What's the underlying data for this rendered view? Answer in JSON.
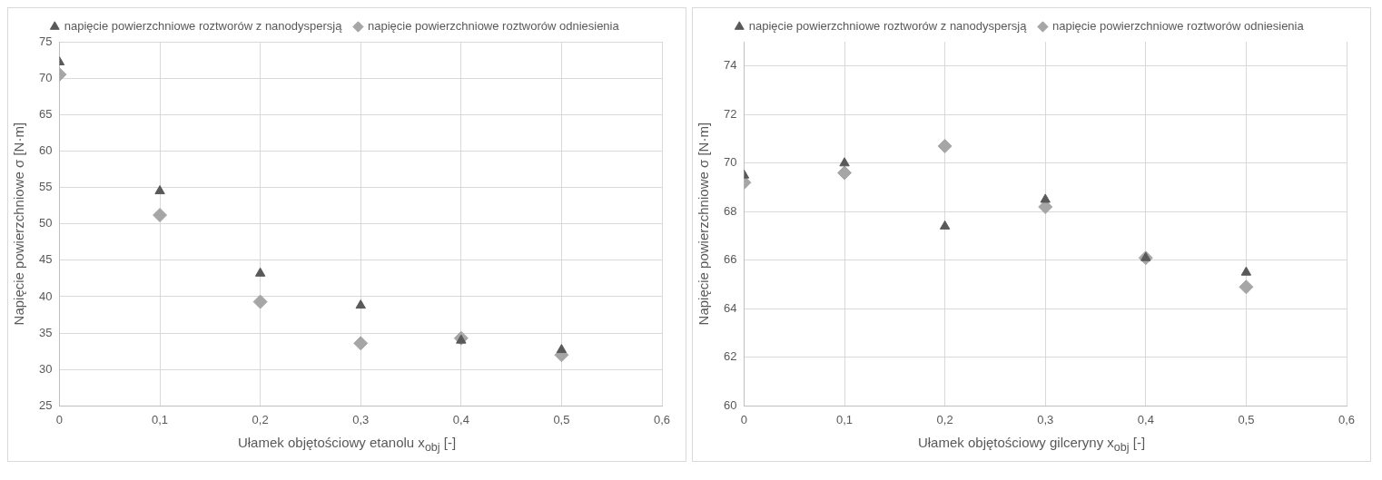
{
  "chart_data": [
    {
      "type": "scatter",
      "xlabel": "Ułamek objętościowy etanolu x$_{obj}$ [-]",
      "ylabel": "Napięcie powierzchniowe σ [N·m]",
      "x": [
        0,
        0.1,
        0.2,
        0.3,
        0.4,
        0.5
      ],
      "series": [
        {
          "name": "napięcie powierzchniowe roztworów z nanodyspersją",
          "color": "#595959",
          "marker": "triangle",
          "values": [
            72.2,
            54.5,
            43.2,
            38.8,
            34.0,
            32.7
          ]
        },
        {
          "name": "napięcie powierzchniowe roztworów odniesienia",
          "color": "#a6a6a6",
          "marker": "diamond",
          "values": [
            70.5,
            51.2,
            39.3,
            33.6,
            34.3,
            32.0
          ]
        }
      ],
      "xlim": [
        0,
        0.6
      ],
      "xticks": [
        0,
        {
          "value": 0.1,
          "label": "0,1"
        },
        {
          "value": 0.2,
          "label": "0,2"
        },
        {
          "value": 0.3,
          "label": "0,3"
        },
        {
          "value": 0.4,
          "label": "0,4"
        },
        {
          "value": 0.5,
          "label": "0,5"
        },
        {
          "value": 0.6,
          "label": "0,6"
        }
      ],
      "ylim": [
        25,
        75
      ],
      "yticks": [
        25,
        30,
        35,
        40,
        45,
        50,
        55,
        60,
        65,
        70,
        75
      ],
      "grid": true,
      "legend": "top"
    },
    {
      "type": "scatter",
      "xlabel": "Ułamek objętościowy gilceryny x$_{obj}$ [-]",
      "ylabel": "Napięcie powierzchniowe σ [N·m]",
      "x": [
        0,
        0.1,
        0.2,
        0.3,
        0.4,
        0.5
      ],
      "series": [
        {
          "name": "napięcie powierzchniowe roztworów z nanodyspersją",
          "color": "#595959",
          "marker": "triangle",
          "values": [
            69.5,
            70.0,
            67.4,
            68.5,
            66.1,
            65.5
          ]
        },
        {
          "name": "napięcie powierzchniowe roztworów odniesienia",
          "color": "#a6a6a6",
          "marker": "diamond",
          "values": [
            69.2,
            69.6,
            70.7,
            68.2,
            66.1,
            64.9
          ]
        }
      ],
      "xlim": [
        0,
        0.6
      ],
      "xticks": [
        0,
        {
          "value": 0.1,
          "label": "0,1"
        },
        {
          "value": 0.2,
          "label": "0,2"
        },
        {
          "value": 0.3,
          "label": "0,3"
        },
        {
          "value": 0.4,
          "label": "0,4"
        },
        {
          "value": 0.5,
          "label": "0,5"
        },
        {
          "value": 0.6,
          "label": "0,6"
        }
      ],
      "ylim": [
        60,
        75
      ],
      "yticks": [
        60,
        62,
        64,
        66,
        68,
        70,
        72,
        74
      ],
      "grid": true,
      "legend": "top"
    }
  ]
}
